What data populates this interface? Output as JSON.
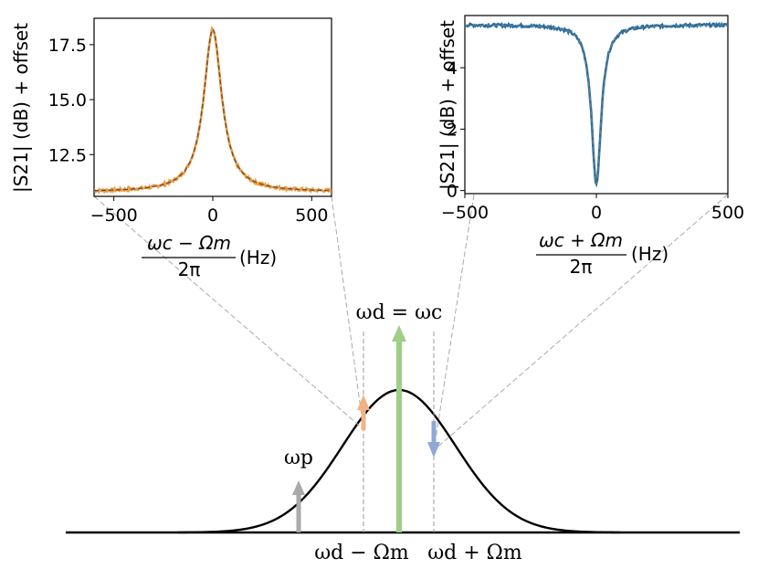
{
  "chart_data": [
    {
      "type": "line",
      "name": "left-inset",
      "ylabel": "|S21| (dB) + offset",
      "xlabel_num": "ωc − Ωm",
      "xlabel_den": "2π",
      "xlabel_unit": "(Hz)",
      "xlim": [
        -600,
        600
      ],
      "ylim": [
        10.6,
        18.7
      ],
      "xticks": [
        -500,
        0,
        500
      ],
      "xtick_labels": [
        "−500",
        "0",
        "500"
      ],
      "yticks": [
        12.5,
        15.0,
        17.5
      ],
      "ytick_labels": [
        "12.5",
        "15.0",
        "17.5"
      ],
      "lorentzian": {
        "baseline": 10.8,
        "peak": 18.2,
        "center": 0,
        "half_width": 55,
        "sign": 1
      },
      "series": [
        {
          "name": "data",
          "color": "#f39a3a"
        },
        {
          "name": "fit",
          "color": "#555555",
          "dashed": true
        }
      ]
    },
    {
      "type": "line",
      "name": "right-inset",
      "ylabel": "|S21| (dB) + offset",
      "xlabel_num": "ωc + Ωm",
      "xlabel_den": "2π",
      "xlabel_unit": "(Hz)",
      "xlim": [
        -500,
        500
      ],
      "ylim": [
        -0.1,
        5.7
      ],
      "xticks": [
        -500,
        0,
        500
      ],
      "xtick_labels": [
        "−500",
        "0",
        "500"
      ],
      "yticks": [
        0,
        2,
        4
      ],
      "ytick_labels": [
        "0",
        "2",
        "4"
      ],
      "lorentzian": {
        "baseline": 5.4,
        "peak": 0.2,
        "center": 0,
        "half_width": 22,
        "sign": -1
      },
      "series": [
        {
          "name": "data",
          "color": "#1f6fa8"
        },
        {
          "name": "fit",
          "color": "#777777",
          "dashed": true
        }
      ]
    },
    {
      "type": "line",
      "name": "cavity-diagram",
      "description_labels": {
        "drive": "ωd = ωc",
        "probe": "ωp",
        "red_sideband": "ωd − Ωm",
        "blue_sideband": "ωd + Ωm"
      },
      "tones": [
        {
          "name": "probe",
          "color": "#aaaaaa",
          "relative_height": 0.36
        },
        {
          "name": "red-sideband",
          "color": "#f4b183",
          "relative_height": 0.28
        },
        {
          "name": "drive",
          "color": "#9dcf87",
          "relative_height": 1.0
        },
        {
          "name": "blue-sideband",
          "color": "#8fa9d6",
          "relative_height": -0.28
        }
      ],
      "gaussian_peak": 1.0
    }
  ]
}
